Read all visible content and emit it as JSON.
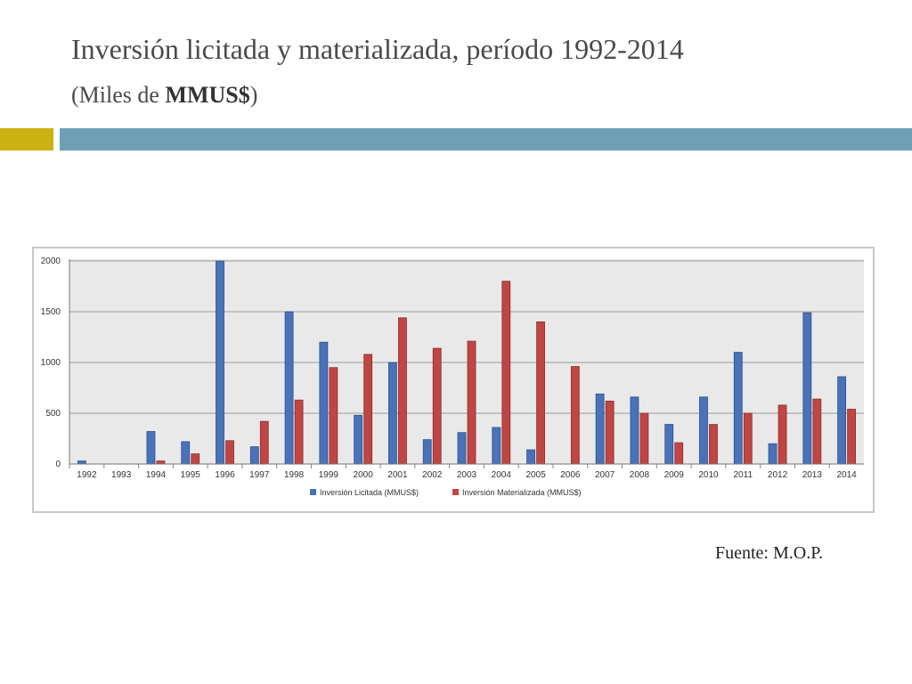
{
  "header": {
    "title": "Inversión licitada y materializada, período 1992-2014",
    "subtitle_prefix": "(Miles de ",
    "subtitle_bold": "MMUS$",
    "subtitle_suffix": ")"
  },
  "colors": {
    "accent_gold": "#cdb011",
    "accent_teal": "#6e9fb4",
    "series_blue": "#4a72b8",
    "series_red": "#bf4644",
    "plot_background": "#e9e9e9"
  },
  "footer": {
    "source": "Fuente: M.O.P."
  },
  "chart_data": {
    "type": "bar",
    "title": "",
    "xlabel": "",
    "ylabel": "",
    "ylim": [
      0,
      2000
    ],
    "yticks": [
      0,
      500,
      1000,
      1500,
      2000
    ],
    "grid": true,
    "legend_position": "bottom",
    "categories": [
      "1992",
      "1993",
      "1994",
      "1995",
      "1996",
      "1997",
      "1998",
      "1999",
      "2000",
      "2001",
      "2002",
      "2003",
      "2004",
      "2005",
      "2006",
      "2007",
      "2008",
      "2009",
      "2010",
      "2011",
      "2012",
      "2013",
      "2014"
    ],
    "series": [
      {
        "name": "Inversión Licitada (MMUS$)",
        "color": "#4a72b8",
        "values": [
          30,
          0,
          320,
          220,
          2000,
          170,
          1500,
          1200,
          480,
          1000,
          240,
          310,
          360,
          140,
          0,
          690,
          660,
          390,
          660,
          1100,
          200,
          1490,
          860
        ]
      },
      {
        "name": "Inversión Materializada (MMUS$)",
        "color": "#bf4644",
        "values": [
          0,
          0,
          30,
          100,
          230,
          420,
          630,
          950,
          1080,
          1440,
          1140,
          1210,
          1800,
          1400,
          960,
          620,
          500,
          210,
          390,
          500,
          580,
          640,
          540
        ]
      }
    ]
  }
}
